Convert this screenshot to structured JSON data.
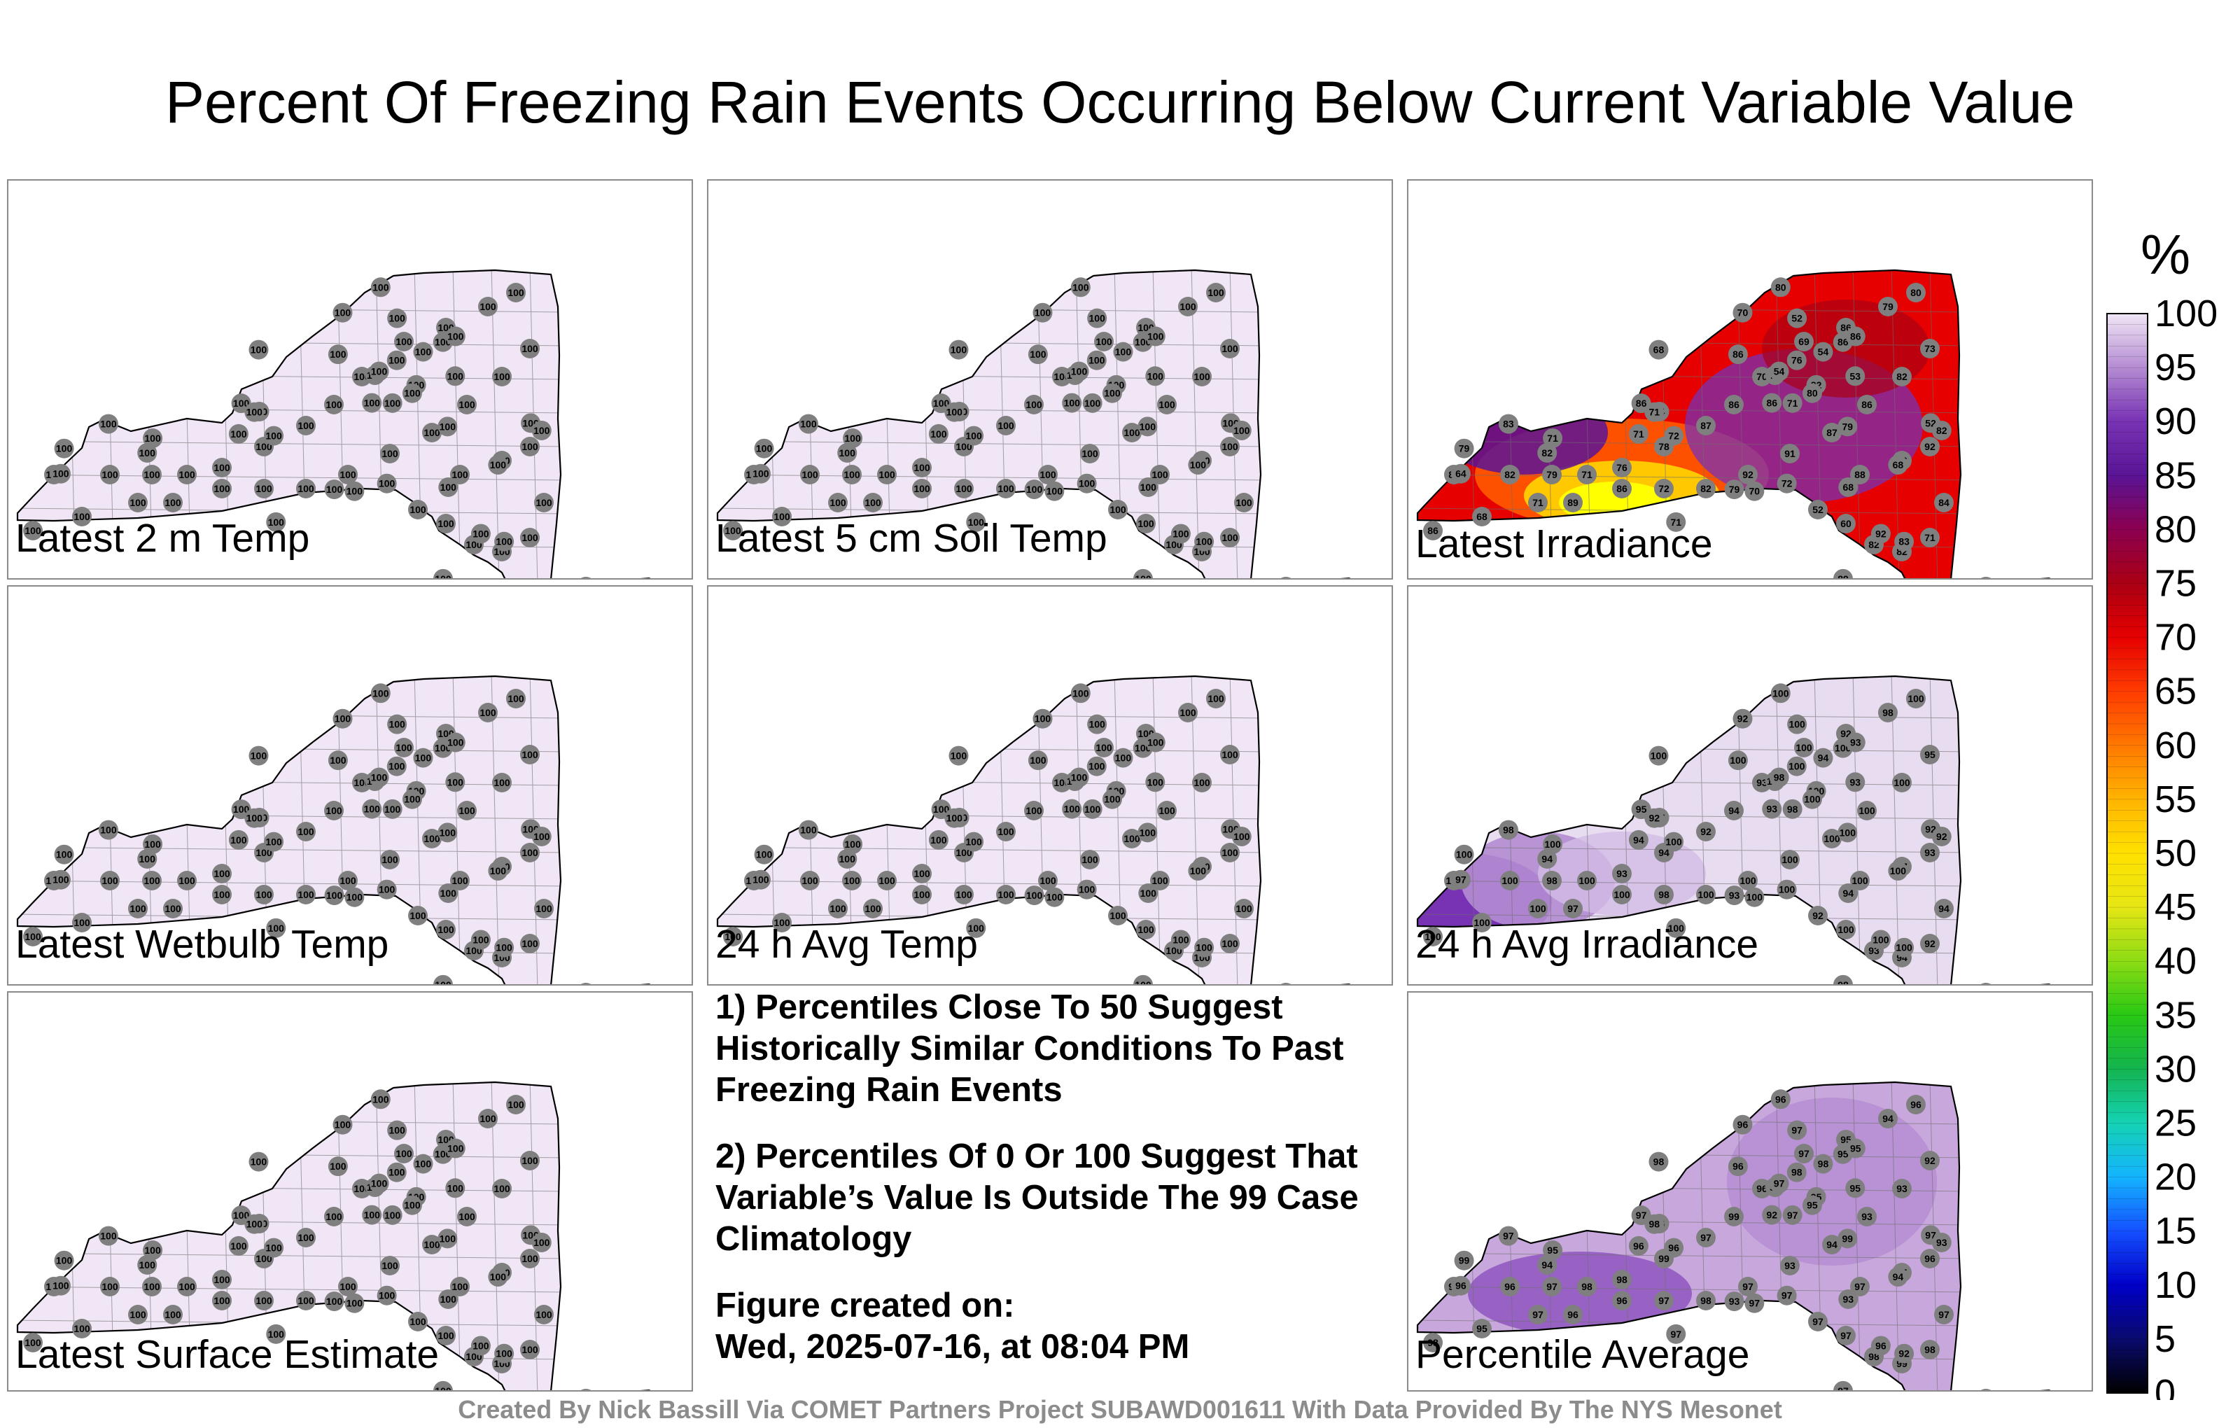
{
  "title": "Percent Of Freezing Rain Events Occurring Below Current Variable Value",
  "panels": [
    {
      "label": "Latest 2 m Temp",
      "mode": "uniform",
      "value": 100
    },
    {
      "label": "Latest 5 cm Soil Temp",
      "mode": "uniform",
      "value": 100
    },
    {
      "label": "Latest Irradiance",
      "mode": "irradiance"
    },
    {
      "label": "Latest Wetbulb Temp",
      "mode": "uniform",
      "value": 100
    },
    {
      "label": "24 h Avg Temp",
      "mode": "uniform",
      "value": 100
    },
    {
      "label": "24 h Avg Irradiance",
      "mode": "avgirr"
    },
    {
      "label": "Latest Surface Estimate",
      "mode": "uniform",
      "value": 100
    },
    {
      "label": "Percentile Average",
      "mode": "avg"
    }
  ],
  "notes": [
    "1) Percentiles Close To 50 Suggest Historically Similar Conditions To Past Freezing Rain Events",
    "2) Percentiles Of 0 Or 100 Suggest That Variable’s Value Is Outside The 99 Case Climatology",
    "Figure created on:",
    "Wed, 2025-07-16, at 08:04 PM"
  ],
  "colorbar": {
    "unit": "%",
    "min": 0,
    "max": 100,
    "ticks": [
      "100",
      "95",
      "90",
      "85",
      "80",
      "75",
      "70",
      "65",
      "60",
      "55",
      "50",
      "45",
      "40",
      "35",
      "30",
      "25",
      "20",
      "15",
      "10",
      "5",
      "0"
    ],
    "stops": [
      "#000000",
      "#0a0a6e",
      "#0000c8",
      "#1450ff",
      "#14b4ff",
      "#14d2b4",
      "#14b450",
      "#28c814",
      "#8cdc14",
      "#e6e614",
      "#ffe100",
      "#ffb400",
      "#ff7800",
      "#ff3c00",
      "#e60000",
      "#aa0014",
      "#8c0050",
      "#5a1496",
      "#7832b4",
      "#b48cd2",
      "#f0e6f5"
    ]
  },
  "station_values": {
    "irradiance": [
      "86",
      "68",
      "82",
      "82",
      "79",
      "71",
      "71",
      "89",
      "76",
      "78",
      "87",
      "86",
      "70",
      "69",
      "86",
      "79",
      "80",
      "73",
      "82",
      "86",
      "87",
      "91",
      "92",
      "82",
      "72",
      "86",
      "88",
      "86",
      "92",
      "84",
      "71",
      "82",
      "82",
      "60",
      "52",
      "54",
      "68",
      "80",
      "79",
      "72",
      "82",
      "86",
      "86",
      "92",
      "83",
      "80",
      "83",
      "84",
      "86",
      "71",
      "52",
      "54",
      "53",
      "52",
      "70",
      "71",
      "76",
      "86",
      "80",
      "68",
      "79",
      "70",
      "79",
      "72",
      "54",
      "71",
      "68",
      "64"
    ],
    "avgirr": [
      "100",
      "100",
      "100",
      "100",
      "98",
      "100",
      "100",
      "97",
      "93",
      "94",
      "92",
      "94",
      "93",
      "100",
      "92",
      "98",
      "100",
      "95",
      "100",
      "100"
    ],
    "avg": [
      "98",
      "95",
      "97",
      "96",
      "97",
      "98",
      "97",
      "96",
      "98",
      "99",
      "97",
      "99",
      "96",
      "97",
      "95",
      "94",
      "96",
      "92",
      "93",
      "93",
      "94",
      "93",
      "97",
      "98",
      "97",
      "96",
      "97",
      "95",
      "96",
      "97",
      "98",
      "99",
      "98",
      "97",
      "97",
      "96",
      "96",
      "97",
      "97",
      "97",
      "95",
      "95",
      "96",
      "96",
      "97",
      "95",
      "92",
      "96",
      "95",
      "96",
      "97"
    ]
  },
  "credit": "Created By Nick Bassill Via COMET Partners Project SUBAWD001611 With Data Provided By The NYS Mesonet"
}
